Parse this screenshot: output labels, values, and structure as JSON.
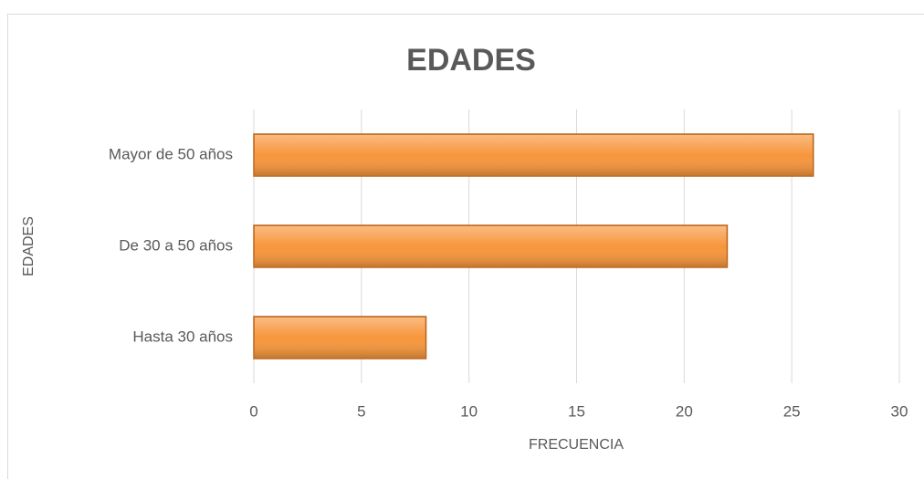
{
  "chart_data": {
    "type": "bar",
    "orientation": "horizontal",
    "title": "EDADES",
    "x_label": "FRECUENCIA",
    "y_label": "EDADES",
    "categories": [
      "Hasta 30 años",
      "De 30 a 50 años",
      "Mayor de 50 años"
    ],
    "values": [
      8,
      22,
      26
    ],
    "color": "#f7963c",
    "xlim": [
      0,
      30
    ],
    "xticks": [
      0,
      5,
      10,
      15,
      20,
      25,
      30
    ],
    "grid": true
  }
}
